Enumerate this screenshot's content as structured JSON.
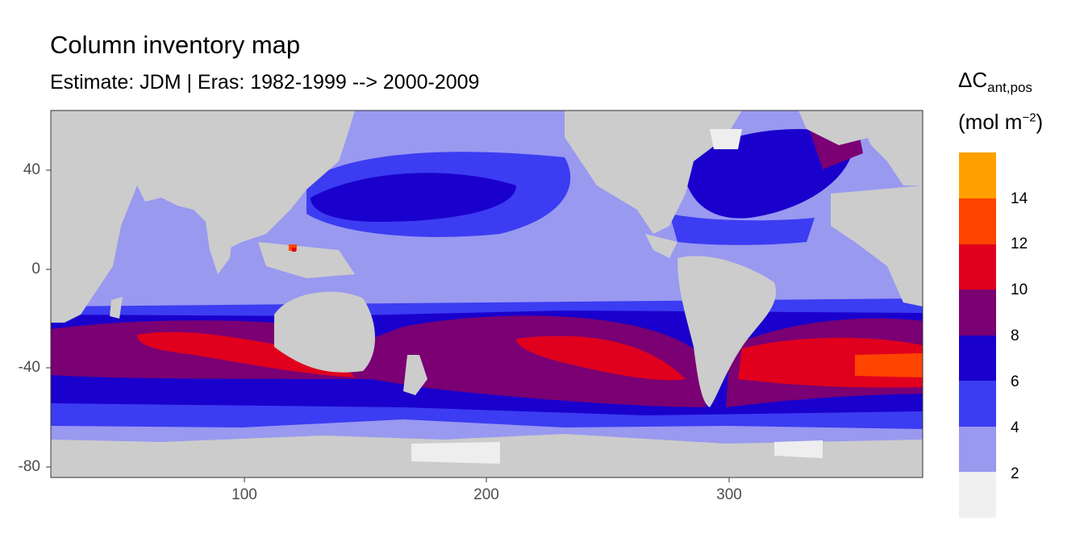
{
  "title": "Column inventory map",
  "subtitle": "Estimate: JDM  | Eras: 1982-1999 --> 2000-2009",
  "legend": {
    "title_main": "ΔC",
    "title_sub": "ant,pos",
    "unit_main": "(mol m",
    "unit_sup": "−2",
    "unit_end": ")",
    "bins": [
      {
        "label": "2",
        "color": "#f0f0f0"
      },
      {
        "label": "4",
        "color": "#9999f0"
      },
      {
        "label": "6",
        "color": "#3c3cf2"
      },
      {
        "label": "8",
        "color": "#1a00cc"
      },
      {
        "label": "10",
        "color": "#7a0073"
      },
      {
        "label": "12",
        "color": "#e0001e"
      },
      {
        "label": "14",
        "color": "#ff4400"
      },
      {
        "label": "",
        "color": "#ffa000"
      }
    ]
  },
  "axes": {
    "x_ticks": [
      "100",
      "200",
      "300"
    ],
    "y_ticks": [
      "40",
      "0",
      "-40",
      "-80"
    ],
    "x_range": [
      20,
      380
    ],
    "y_range": [
      -85,
      65
    ]
  },
  "colors": {
    "land": "#cccccc",
    "ice_shelf": "#eeeeee"
  },
  "chart_data": {
    "type": "heatmap",
    "title": "Column inventory map",
    "subtitle": "Estimate: JDM  | Eras: 1982-1999 --> 2000-2009",
    "xlim": [
      20,
      380
    ],
    "ylim": [
      -85,
      65
    ],
    "x_ticks": [
      100,
      200,
      300
    ],
    "y_ticks": [
      40,
      0,
      -40,
      -80
    ],
    "color_breaks": [
      2,
      4,
      6,
      8,
      10,
      12,
      14
    ],
    "legend_position": "right"
  }
}
